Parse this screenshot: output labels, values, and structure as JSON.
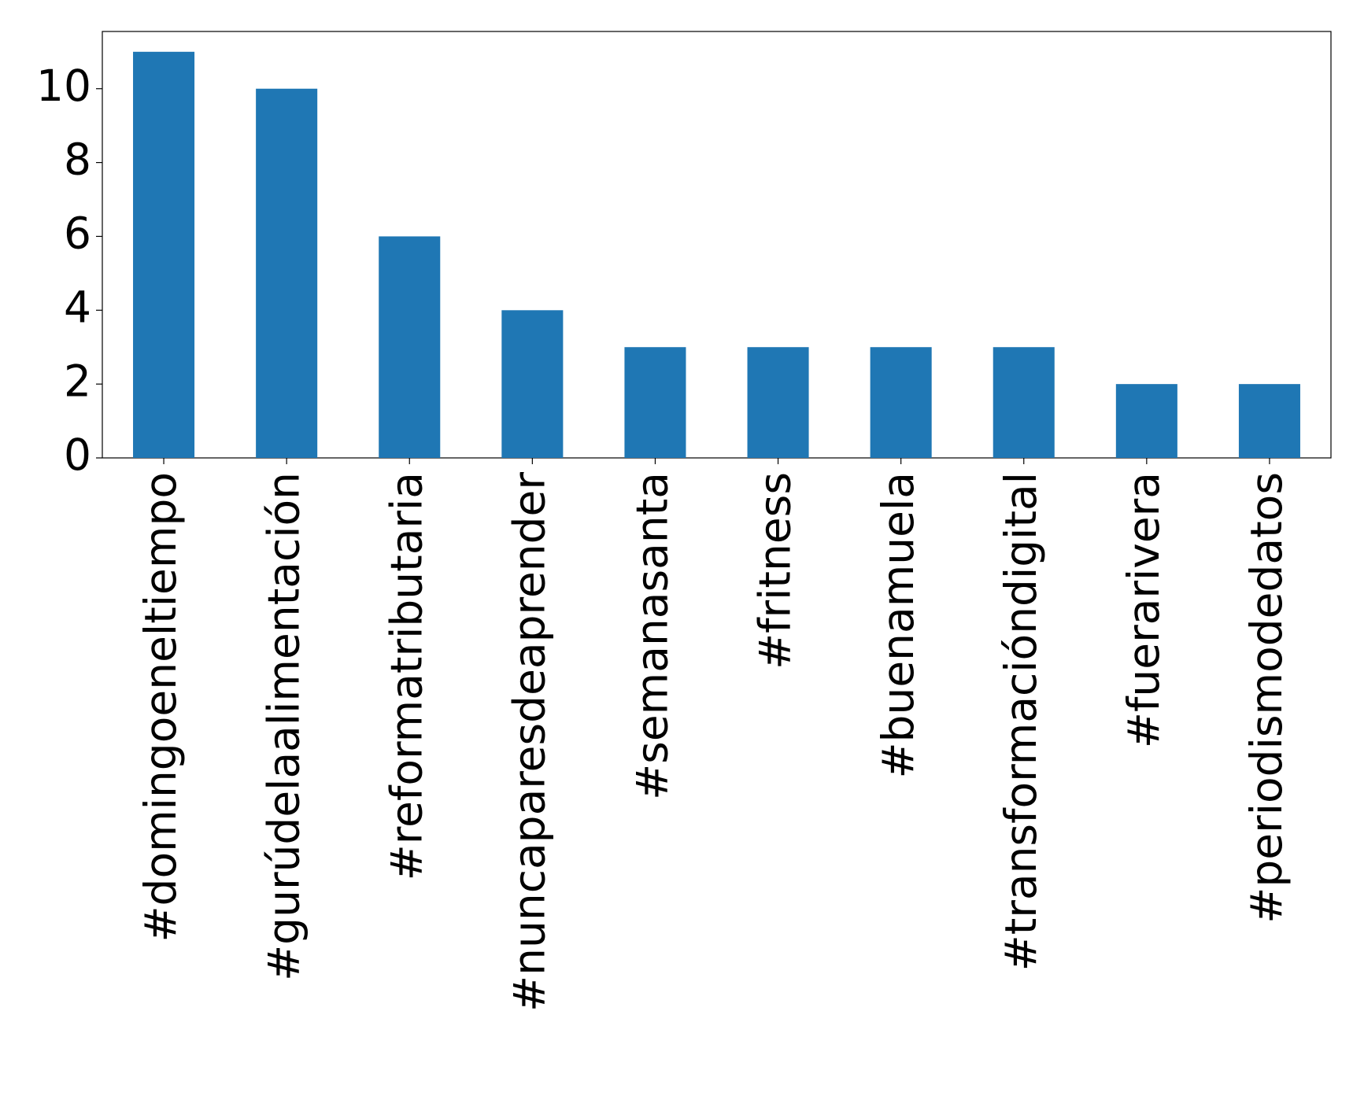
{
  "chart_data": {
    "type": "bar",
    "categories": [
      "#domingoeneltiempo",
      "#gurúdelaalimentación",
      "#reformatributaria",
      "#nuncaparesdeaprender",
      "#semanasanta",
      "#fritness",
      "#buenamuela",
      "#transformacióndigital",
      "#fuerarivera",
      "#periodismodedatos"
    ],
    "values": [
      11,
      10,
      6,
      4,
      3,
      3,
      3,
      3,
      2,
      2
    ],
    "color": "#1f77b4",
    "ylim": [
      0,
      11.55
    ],
    "yticks": [
      0,
      2,
      4,
      6,
      8,
      10
    ],
    "grid": false
  }
}
